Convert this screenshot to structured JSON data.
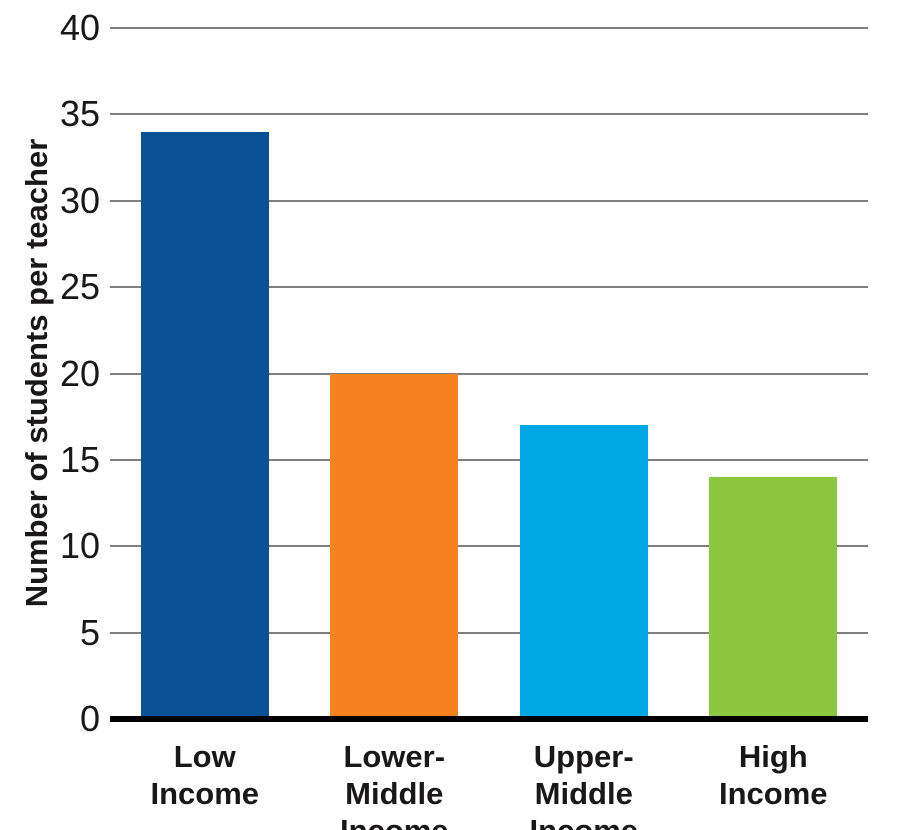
{
  "chart_data": {
    "type": "bar",
    "title": "",
    "ylabel": "Number of students per teacher",
    "xlabel": "",
    "categories": [
      "Low Income",
      "Lower-Middle Income",
      "Upper-Middle Income",
      "High Income"
    ],
    "category_label_lines": [
      [
        "Low",
        "Income"
      ],
      [
        "Lower-Middle",
        "Income"
      ],
      [
        "Upper-Middle",
        "Income"
      ],
      [
        "High",
        "Income"
      ]
    ],
    "values": [
      34,
      20,
      17,
      14
    ],
    "bar_colors": [
      "#0a5196",
      "#f5821f",
      "#00a8e4",
      "#8cc63f"
    ],
    "ylim": [
      0,
      40
    ],
    "yticks": [
      0,
      5,
      10,
      15,
      20,
      25,
      30,
      35,
      40
    ],
    "grid": true,
    "legend": "none",
    "gridline_color": "#7f7f7f",
    "axis_color": "#000000",
    "text_color": "#1a1718",
    "background_color": "#ffffff"
  }
}
